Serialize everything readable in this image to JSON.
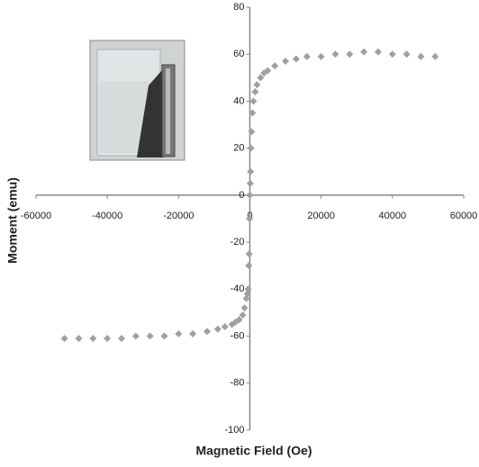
{
  "chart_data": {
    "type": "scatter",
    "x_label": "Magnetic Field (Oe)",
    "y_label": "Moment (emu)",
    "x": [
      -52000,
      -48000,
      -44000,
      -40000,
      -36000,
      -32000,
      -28000,
      -24000,
      -20000,
      -16000,
      -12000,
      -9000,
      -7000,
      -5000,
      -4000,
      -3000,
      -2000,
      -1500,
      -1000,
      -700,
      -500,
      -300,
      -200,
      -100,
      0,
      100,
      200,
      300,
      500,
      700,
      1000,
      1500,
      2000,
      3000,
      4000,
      5000,
      7000,
      10000,
      13000,
      16000,
      20000,
      24000,
      28000,
      32000,
      36000,
      40000,
      44000,
      48000,
      52000
    ],
    "values": [
      -61,
      -61,
      -61,
      -61,
      -61,
      -60,
      -60,
      -60,
      -59,
      -59,
      -58,
      -57,
      -56,
      -55,
      -54,
      -53,
      -51,
      -48,
      -44,
      -42,
      -40,
      -30,
      -25,
      -10,
      0,
      5,
      10,
      20,
      27,
      35,
      40,
      44,
      47,
      50,
      52,
      53,
      55,
      57,
      58,
      59,
      59,
      60,
      60,
      61,
      61,
      60,
      60,
      59,
      59
    ],
    "color": "#a0a0a0",
    "xlim": [
      -60000,
      60000
    ],
    "ylim": [
      -100,
      80
    ],
    "xticks": [
      -60000,
      -40000,
      -20000,
      0,
      20000,
      40000,
      60000
    ],
    "yticks": [
      -100,
      -80,
      -60,
      -40,
      -20,
      0,
      20,
      40,
      60,
      80
    ]
  }
}
